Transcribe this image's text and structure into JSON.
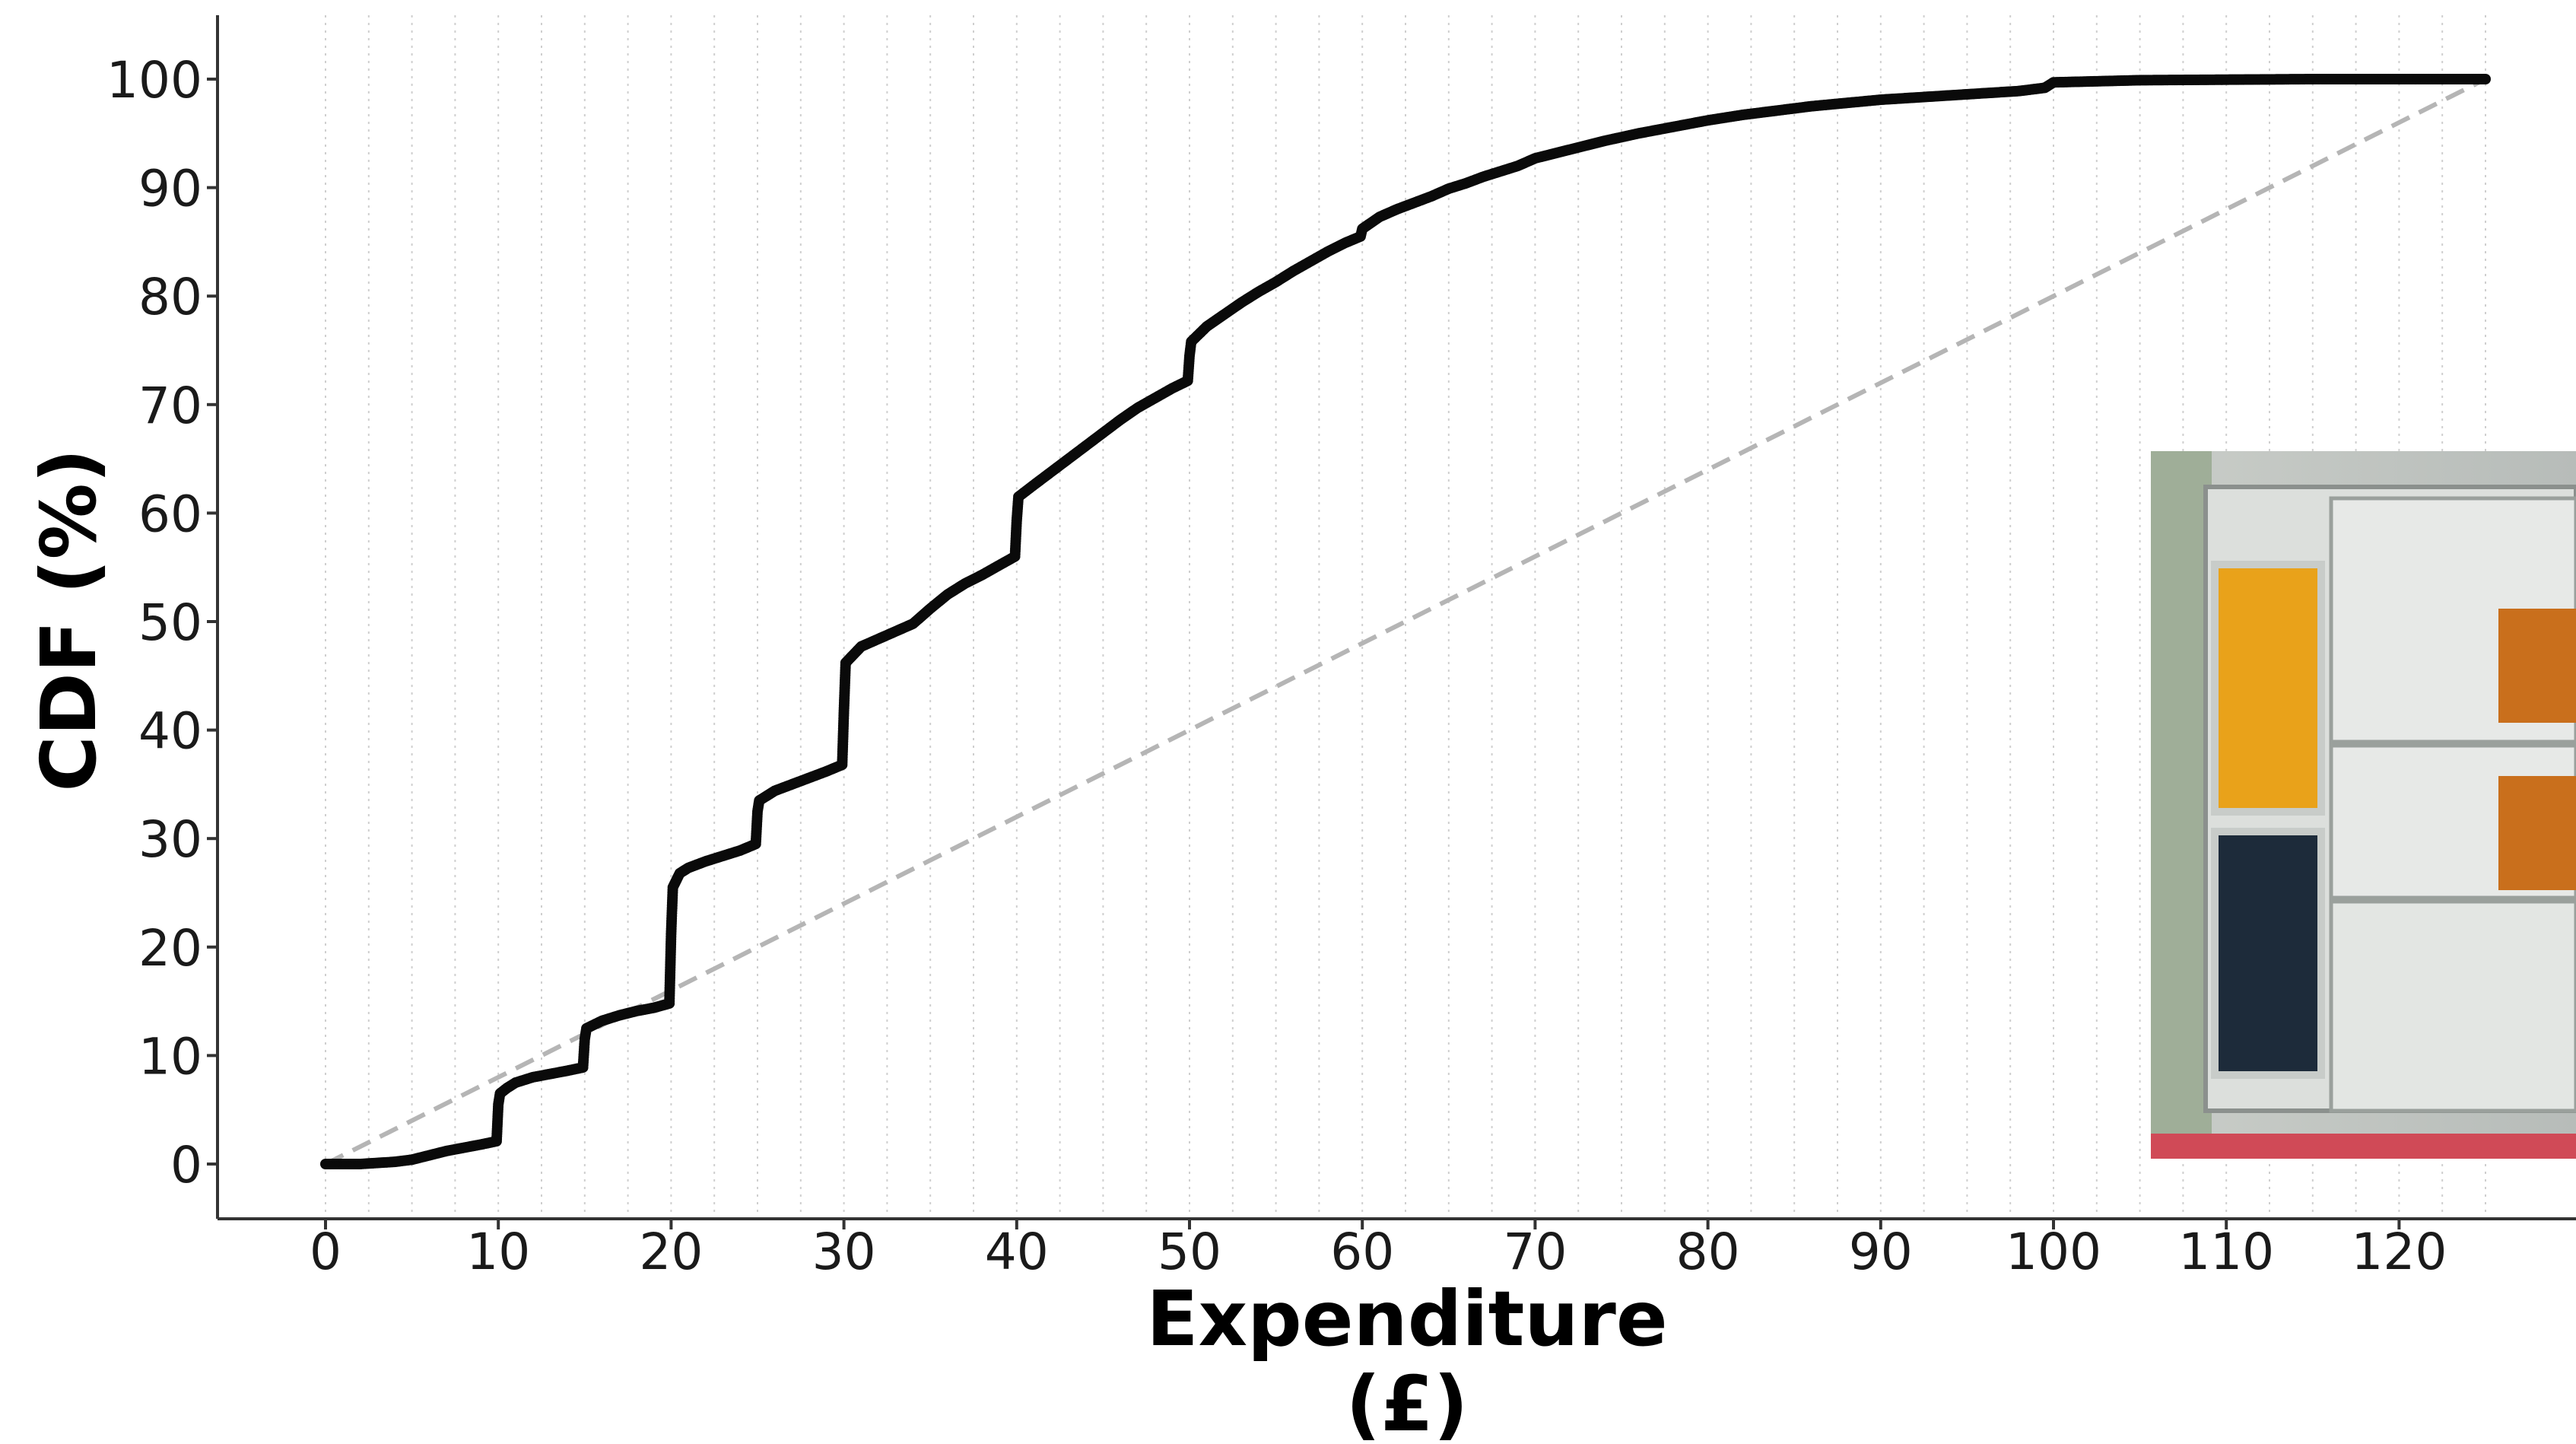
{
  "chart_data": {
    "type": "scatter",
    "title": "",
    "xlabel_lines": [
      "Expenditure",
      "(£)"
    ],
    "ylabel": "CDF (%)",
    "xlim": [
      -6,
      127
    ],
    "ylim": [
      -5,
      106
    ],
    "x_ticks": [
      0,
      10,
      20,
      30,
      40,
      50,
      60,
      70,
      80,
      90,
      100,
      110,
      120
    ],
    "y_ticks": [
      0,
      10,
      20,
      30,
      40,
      50,
      60,
      70,
      80,
      90,
      100
    ],
    "x_tick_labels": [
      "0",
      "10",
      "20",
      "30",
      "40",
      "50",
      "60",
      "70",
      "80",
      "90",
      "100",
      "110",
      "120"
    ],
    "y_tick_labels": [
      "0",
      "10",
      "20",
      "30",
      "40",
      "50",
      "60",
      "70",
      "80",
      "90",
      "100"
    ],
    "grid": "vertical dotted lines every 2.5",
    "series": [
      {
        "style": "black points",
        "x": [
          0,
          1,
          2,
          3,
          4,
          5,
          6,
          7,
          8,
          9,
          9.9,
          10,
          10.1,
          10.5,
          11,
          12,
          13,
          14,
          14.9,
          15,
          15.1,
          16,
          17,
          18,
          19,
          19.9,
          20,
          20.1,
          20.5,
          21,
          22,
          23,
          24,
          24.9,
          25,
          25.1,
          26,
          27,
          28,
          29,
          29.9,
          30,
          30.1,
          31,
          32,
          33,
          34,
          35,
          36,
          37,
          38,
          39,
          39.9,
          40,
          40.1,
          41,
          42,
          43,
          44,
          45,
          46,
          47,
          48,
          49,
          49.9,
          50,
          50.1,
          51,
          52,
          53,
          54,
          55,
          56,
          57,
          58,
          59,
          59.9,
          60,
          61,
          62,
          63,
          64,
          65,
          66,
          67,
          68,
          69,
          70,
          72,
          74,
          76,
          78,
          80,
          82,
          84,
          86,
          88,
          90,
          92,
          94,
          96,
          98,
          99.5,
          100,
          105,
          110,
          115,
          120,
          125
        ],
        "y": [
          0,
          0,
          0,
          0.1,
          0.2,
          0.4,
          0.8,
          1.2,
          1.5,
          1.8,
          2.1,
          5.5,
          6.5,
          7,
          7.5,
          8,
          8.3,
          8.6,
          8.9,
          11.5,
          12.5,
          13.2,
          13.7,
          14.1,
          14.4,
          14.8,
          21.2,
          25.5,
          26.8,
          27.3,
          27.9,
          28.4,
          28.9,
          29.5,
          32.5,
          33.5,
          34.4,
          35.0,
          35.6,
          36.2,
          36.8,
          41.8,
          46.2,
          47.7,
          48.4,
          49.1,
          49.8,
          51.2,
          52.5,
          53.5,
          54.3,
          55.2,
          56.0,
          59.3,
          61.5,
          62.6,
          63.8,
          65.0,
          66.2,
          67.4,
          68.6,
          69.7,
          70.6,
          71.5,
          72.2,
          74.5,
          75.8,
          77.2,
          78.3,
          79.4,
          80.4,
          81.3,
          82.3,
          83.2,
          84.1,
          84.9,
          85.5,
          86.2,
          87.3,
          88.0,
          88.6,
          89.2,
          89.9,
          90.4,
          91.0,
          91.5,
          92.0,
          92.7,
          93.5,
          94.3,
          95.0,
          95.6,
          96.2,
          96.7,
          97.1,
          97.5,
          97.8,
          98.1,
          98.3,
          98.5,
          98.7,
          98.9,
          99.2,
          99.7,
          99.9,
          99.95,
          100,
          100,
          100
        ]
      },
      {
        "style": "grey dashed reference line",
        "x": [
          0,
          125
        ],
        "y": [
          0,
          100
        ]
      }
    ]
  }
}
